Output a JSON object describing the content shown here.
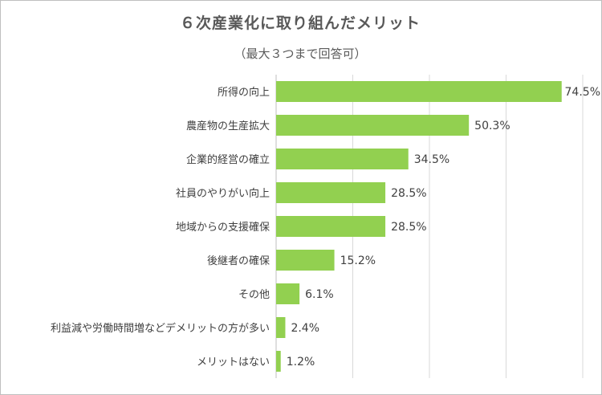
{
  "chart_data": {
    "type": "bar",
    "orientation": "horizontal",
    "title": "６次産業化に取り組んだメリット",
    "subtitle": "（最大３つまで回答可）",
    "categories": [
      "所得の向上",
      "農産物の生産拡大",
      "企業的経営の確立",
      "社員のやりがい向上",
      "地域からの支援確保",
      "後継者の確保",
      "その他",
      "利益減や労働時間増などデメリットの方が多い",
      "メリットはない"
    ],
    "values": [
      74.5,
      50.3,
      34.5,
      28.5,
      28.5,
      15.2,
      6.1,
      2.4,
      1.2
    ],
    "value_labels": [
      "74.5%",
      "50.3%",
      "34.5%",
      "28.5%",
      "28.5%",
      "15.2%",
      "6.1%",
      "2.4%",
      "1.2%"
    ],
    "xlim": [
      0,
      80
    ],
    "gridlines": [
      0,
      20,
      40,
      60,
      80
    ],
    "grid": true,
    "bar_color": "#92d050",
    "grid_color": "#d9d9d9"
  }
}
